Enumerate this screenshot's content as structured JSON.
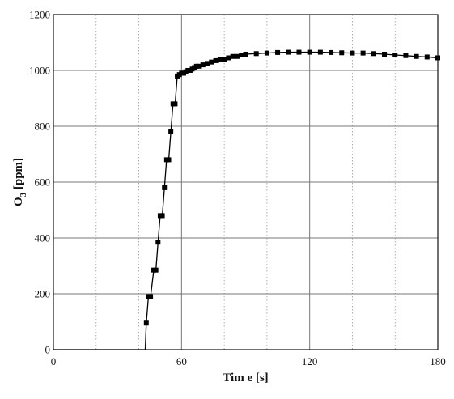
{
  "chart_data": {
    "type": "line",
    "xlabel": "Tim e [s]",
    "ylabel_main": "O",
    "ylabel_sub": "3",
    "ylabel_unit": " [ppm]",
    "xlim": [
      0,
      180
    ],
    "ylim": [
      0,
      1200
    ],
    "x_major_ticks": [
      0,
      60,
      120,
      180
    ],
    "x_minor_ticks": [
      20,
      40,
      80,
      100,
      140,
      160
    ],
    "y_ticks": [
      0,
      200,
      400,
      600,
      800,
      1000,
      1200
    ],
    "x_tick_labels": [
      "0",
      "60",
      "120",
      "180"
    ],
    "y_tick_labels": [
      "0",
      "200",
      "400",
      "600",
      "800",
      "1000",
      "1200"
    ],
    "grid": true,
    "series": [
      {
        "color": "#000000",
        "marker": "square",
        "x": [
          0,
          10,
          20,
          30,
          40,
          43,
          43.5,
          44.5,
          45.5,
          47,
          48,
          49,
          50,
          51,
          52,
          53,
          54,
          55,
          56,
          57,
          58,
          59,
          60,
          61,
          62,
          63,
          64,
          65,
          66,
          67,
          68,
          70,
          72,
          74,
          76,
          78,
          80,
          82,
          84,
          86,
          88,
          90,
          95,
          100,
          105,
          110,
          115,
          120,
          125,
          130,
          135,
          140,
          145,
          150,
          155,
          160,
          165,
          170,
          175,
          180
        ],
        "y": [
          0,
          0,
          0,
          0,
          0,
          0,
          95,
          190,
          190,
          285,
          285,
          385,
          480,
          480,
          580,
          680,
          680,
          780,
          880,
          880,
          980,
          985,
          990,
          990,
          995,
          1000,
          1000,
          1005,
          1010,
          1015,
          1015,
          1020,
          1025,
          1030,
          1035,
          1040,
          1040,
          1045,
          1050,
          1050,
          1055,
          1058,
          1060,
          1062,
          1064,
          1065,
          1065,
          1065,
          1065,
          1064,
          1063,
          1062,
          1062,
          1060,
          1058,
          1055,
          1053,
          1050,
          1048,
          1045
        ]
      }
    ]
  }
}
